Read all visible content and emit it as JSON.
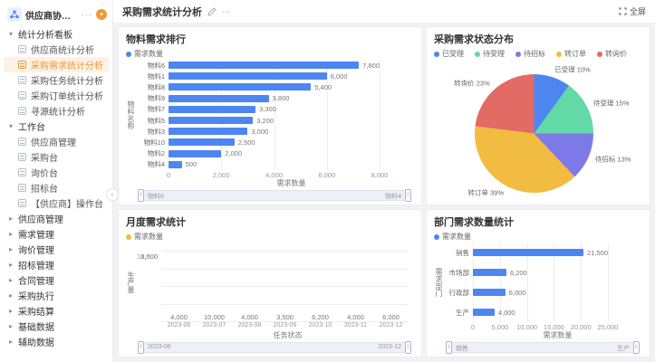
{
  "app": {
    "title": "供应商协同管理...",
    "more": "···"
  },
  "sidebar": {
    "groups": [
      {
        "label": "统计分析看板",
        "items": [
          {
            "label": "供应商统计分析",
            "active": false
          },
          {
            "label": "采购需求统计分析",
            "active": true
          },
          {
            "label": "采购任务统计分析",
            "active": false
          },
          {
            "label": "采购订单统计分析",
            "active": false
          },
          {
            "label": "寻源统计分析",
            "active": false
          }
        ]
      },
      {
        "label": "工作台",
        "items": [
          {
            "label": "供应商管理",
            "active": false
          },
          {
            "label": "采购台",
            "active": false
          },
          {
            "label": "询价台",
            "active": false
          },
          {
            "label": "招标台",
            "active": false
          },
          {
            "label": "【供应商】操作台",
            "active": false
          }
        ]
      }
    ],
    "collapsed_items": [
      "供应商管理",
      "需求管理",
      "询价管理",
      "招标管理",
      "合同管理",
      "采购执行",
      "采购结算",
      "基础数据",
      "辅助数据"
    ]
  },
  "header": {
    "title": "采购需求统计分析",
    "more": "···",
    "fullscreen_label": "全屏"
  },
  "colors": {
    "blue": "#4d86f0",
    "yellow": "#f2bb42",
    "green": "#62d9a6",
    "purple": "#7d79e8",
    "red": "#e26b66",
    "active_orange": "#e8993f"
  },
  "chart_data": [
    {
      "type": "bar",
      "orientation": "horizontal",
      "title": "物料需求排行",
      "legend": "需求数量",
      "color": "#4d86f0",
      "categories": [
        "物料6",
        "物料1",
        "物料8",
        "物料9",
        "物料7",
        "物料5",
        "物料3",
        "物料10",
        "物料2",
        "物料4"
      ],
      "values": [
        7800,
        6000,
        5400,
        3800,
        3300,
        3200,
        3000,
        2500,
        2000,
        500
      ],
      "xlabel": "需求数量",
      "ylabel": "物料名称",
      "xlim": [
        0,
        8000
      ],
      "xticks": [
        "0",
        "2,000",
        "4,000",
        "6,000",
        "8,000"
      ],
      "datazoom": {
        "start": "物料6",
        "end": "物料4"
      }
    },
    {
      "type": "pie",
      "title": "采购需求状态分布",
      "slices": [
        {
          "name": "已受理",
          "pct": 10,
          "color": "#4d86f0"
        },
        {
          "name": "待受理",
          "pct": 15,
          "color": "#62d9a6"
        },
        {
          "name": "待招标",
          "pct": 13,
          "color": "#7d79e8"
        },
        {
          "name": "转订单",
          "pct": 39,
          "color": "#f2bb42"
        },
        {
          "name": "转询价",
          "pct": 23,
          "color": "#e26b66"
        }
      ]
    },
    {
      "type": "bar",
      "orientation": "vertical",
      "title": "月度需求统计",
      "legend": "需求数量",
      "color": "#f2bb42",
      "categories": [
        "2023-06",
        "2023-07",
        "2023-08",
        "2023-09",
        "2023-10",
        "2023-11",
        "2023-12"
      ],
      "values": [
        4000,
        10000,
        4000,
        3500,
        6200,
        4000,
        6000
      ],
      "xlabel": "任务状态",
      "ylabel": "生产量",
      "ylim": [
        0,
        10000
      ],
      "yticks": [
        "0",
        "2,500",
        "5,000",
        "7,500",
        "10,000"
      ],
      "datazoom": {
        "start": "2023-06",
        "end": "2023-12"
      }
    },
    {
      "type": "bar",
      "orientation": "horizontal",
      "title": "部门需求数量统计",
      "legend": "需求数量",
      "color": "#4d86f0",
      "categories": [
        "销售",
        "市场部",
        "行政部",
        "生产"
      ],
      "values": [
        21500,
        6200,
        6000,
        4000
      ],
      "xlabel": "需求数量",
      "ylabel": "需求部门",
      "xlim": [
        0,
        25000
      ],
      "xticks": [
        "0",
        "5,000",
        "10,000",
        "15,000",
        "20,000",
        "25,000"
      ],
      "datazoom": {
        "start": "销售",
        "end": "生产"
      }
    }
  ]
}
